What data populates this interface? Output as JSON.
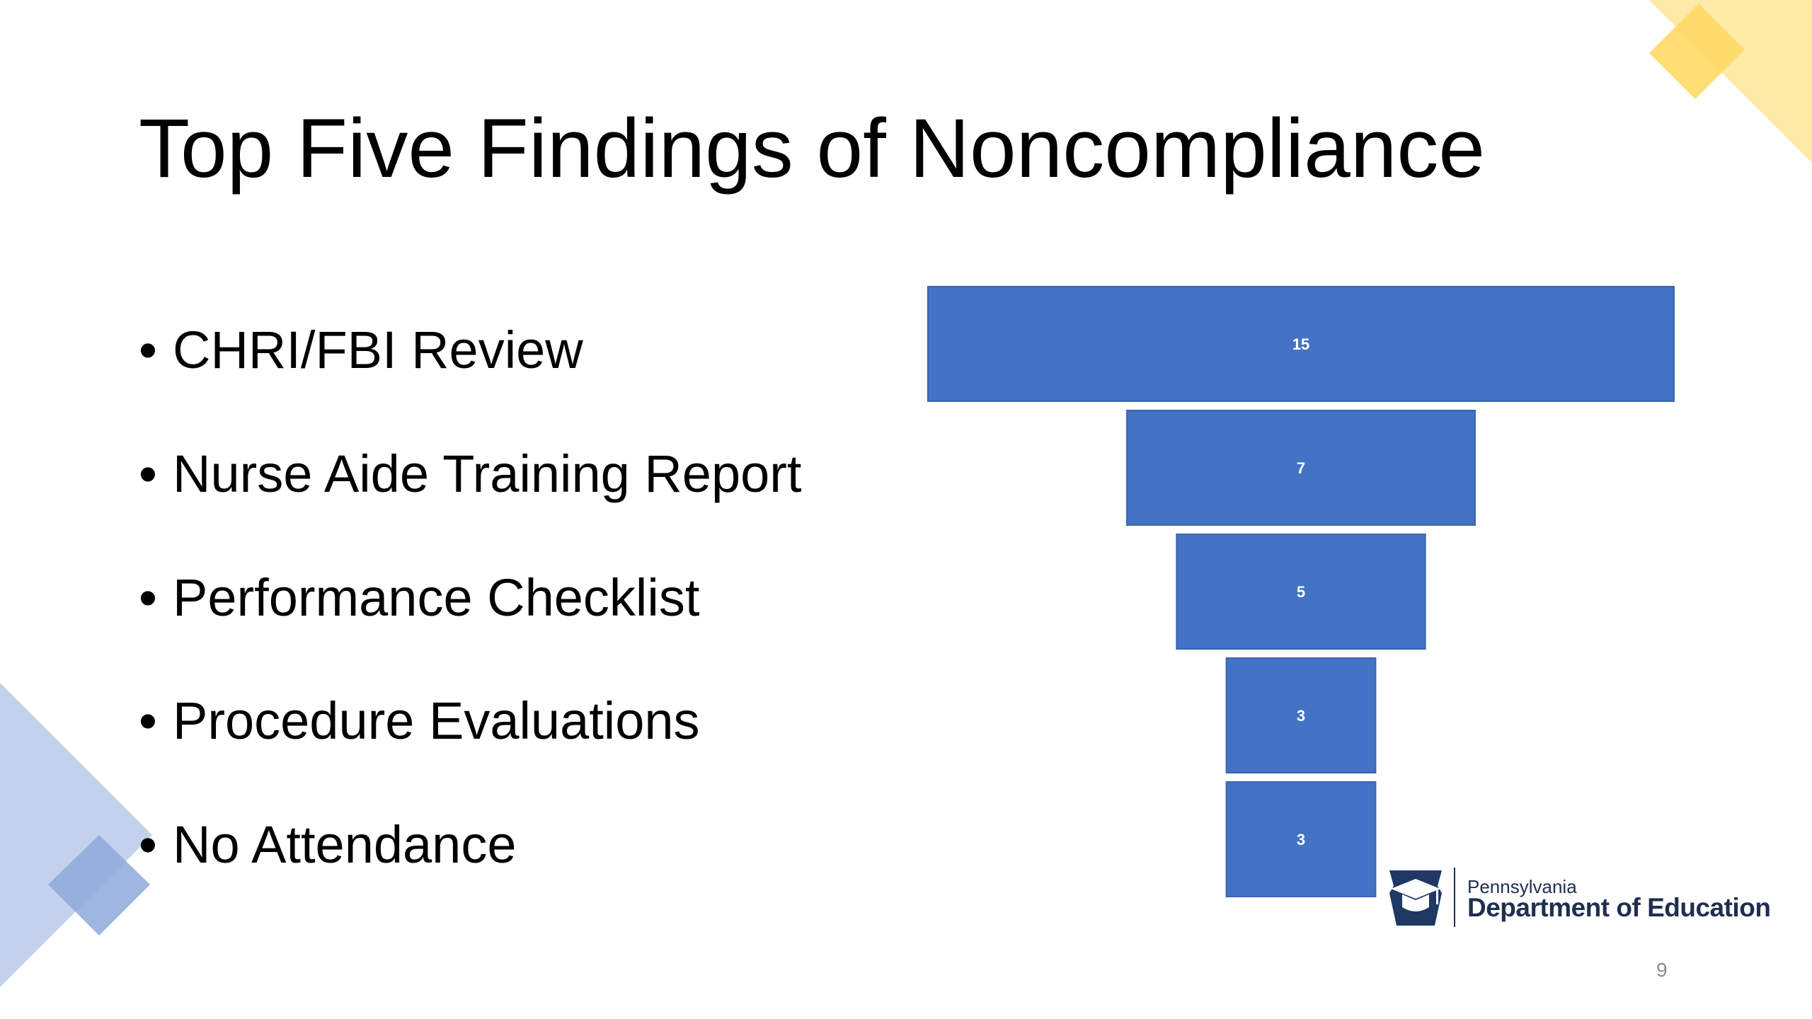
{
  "slide": {
    "title": "Top Five Findings of Noncompliance",
    "bullets": [
      "CHRI/FBI Review",
      "Nurse Aide Training Report",
      "Performance Checklist",
      "Procedure Evaluations",
      "No Attendance"
    ],
    "bullet_symbol": "•",
    "page_number": "9",
    "logo": {
      "small_text": "Pennsylvania",
      "big_text": "Department of Education"
    }
  },
  "colors": {
    "bar": "#4472C4",
    "label": "#ffffff",
    "decor_yellow": "#FFD966",
    "decor_blue": "#8EA9DB"
  },
  "chart_data": {
    "type": "bar",
    "orientation": "horizontal-centered (funnel)",
    "categories": [
      "CHRI/FBI Review",
      "Nurse Aide Training Report",
      "Performance Checklist",
      "Procedure Evaluations",
      "No Attendance"
    ],
    "values": [
      15,
      7,
      5,
      3,
      3
    ],
    "data_labels": [
      "15",
      "7",
      "5",
      "3",
      "3"
    ],
    "title": "",
    "xlabel": "",
    "ylabel": "",
    "grid": false,
    "legend": "none"
  }
}
